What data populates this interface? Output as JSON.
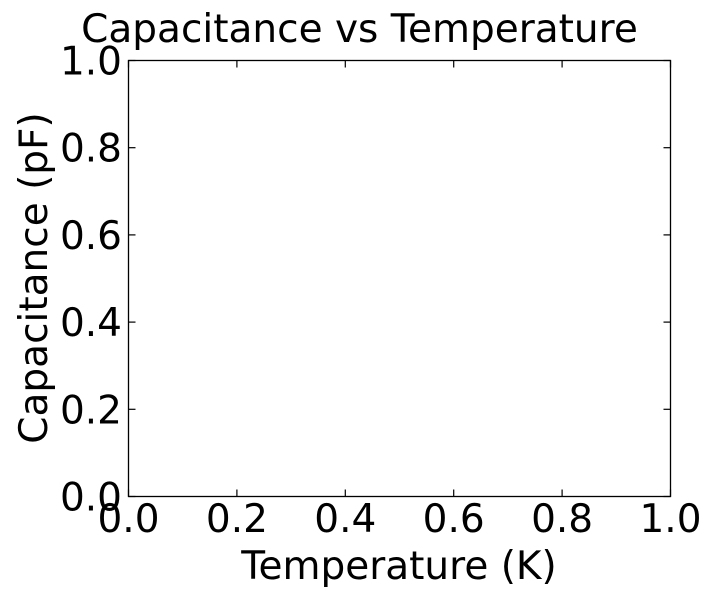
{
  "chart_data": {
    "type": "line",
    "title": "Capacitance vs Temperature",
    "xlabel": "Temperature (K)",
    "ylabel": "Capacitance (pF)",
    "xlim": [
      0.0,
      1.0
    ],
    "ylim": [
      0.0,
      1.0
    ],
    "x_ticks": [
      0.0,
      0.2,
      0.4,
      0.6,
      0.8,
      1.0
    ],
    "x_tick_labels": [
      "0.0",
      "0.2",
      "0.4",
      "0.6",
      "0.8",
      "1.0"
    ],
    "y_ticks": [
      0.0,
      0.2,
      0.4,
      0.6,
      0.8,
      1.0
    ],
    "y_tick_labels": [
      "0.0",
      "0.2",
      "0.4",
      "0.6",
      "0.8",
      "1.0"
    ],
    "series": [],
    "grid": false,
    "legend": "none",
    "colors": {
      "axes": "#000000",
      "background": "#ffffff"
    }
  }
}
